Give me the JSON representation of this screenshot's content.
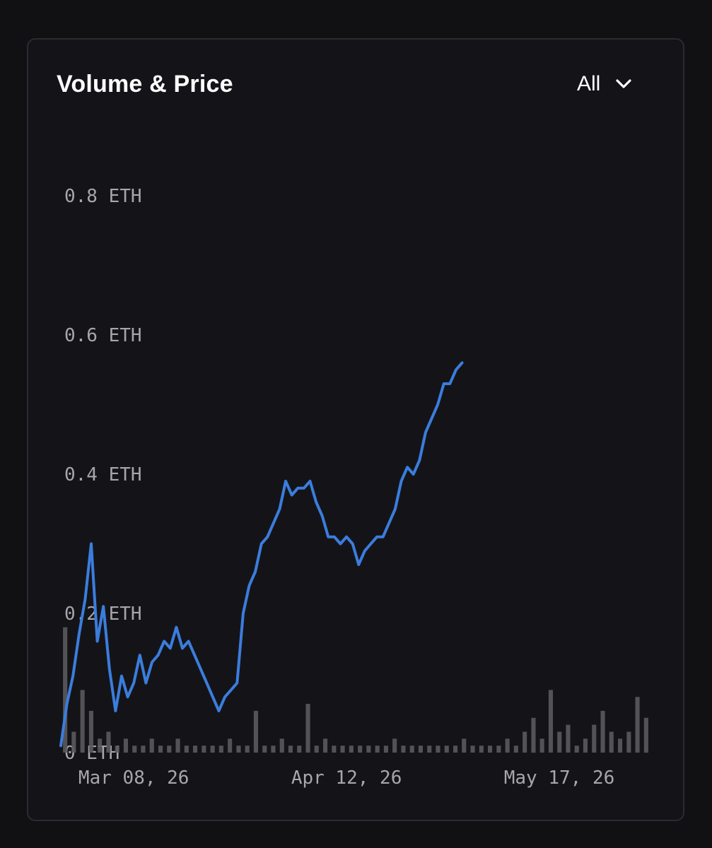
{
  "card": {
    "title": "Volume & Price",
    "range_selector": {
      "value": "All",
      "icon": "chevron-down-icon"
    }
  },
  "colors": {
    "background": "#111113",
    "card": "#141418",
    "price_line": "#3b7ddd",
    "volume_bars": "#5a5a5e",
    "tick_text": "#a7a7ab"
  },
  "chart_data": {
    "type": "line",
    "title": "",
    "xlabel": "",
    "ylabel": "",
    "ylim": [
      0,
      0.8
    ],
    "grid": false,
    "legend": "none",
    "y_ticks": [
      {
        "value": 0.8,
        "label": "0.8 ETH"
      },
      {
        "value": 0.6,
        "label": "0.6 ETH"
      },
      {
        "value": 0.4,
        "label": "0.4 ETH"
      },
      {
        "value": 0.2,
        "label": "0.2 ETH"
      },
      {
        "value": 0,
        "label": "0 ETH"
      }
    ],
    "x_ticks": [
      "Mar 08, 26",
      "Apr 12, 26",
      "May 17, 26"
    ],
    "x_tick_dates": [
      "2026-03-08",
      "2026-04-12",
      "2026-05-17"
    ],
    "xlim": [
      "2026-02-24",
      "2026-06-01"
    ],
    "series": [
      {
        "kind": "line",
        "points": [
          [
            "2026-02-24",
            0.01
          ],
          [
            "2026-02-25",
            0.07
          ],
          [
            "2026-02-26",
            0.11
          ],
          [
            "2026-02-27",
            0.17
          ],
          [
            "2026-02-28",
            0.22
          ],
          [
            "2026-03-01",
            0.3
          ],
          [
            "2026-03-02",
            0.16
          ],
          [
            "2026-03-03",
            0.21
          ],
          [
            "2026-03-04",
            0.12
          ],
          [
            "2026-03-05",
            0.06
          ],
          [
            "2026-03-06",
            0.11
          ],
          [
            "2026-03-07",
            0.08
          ],
          [
            "2026-03-08",
            0.1
          ],
          [
            "2026-03-09",
            0.14
          ],
          [
            "2026-03-10",
            0.1
          ],
          [
            "2026-03-11",
            0.13
          ],
          [
            "2026-03-12",
            0.14
          ],
          [
            "2026-03-13",
            0.16
          ],
          [
            "2026-03-14",
            0.15
          ],
          [
            "2026-03-15",
            0.18
          ],
          [
            "2026-03-16",
            0.15
          ],
          [
            "2026-03-17",
            0.16
          ],
          [
            "2026-03-18",
            0.14
          ],
          [
            "2026-03-19",
            0.12
          ],
          [
            "2026-03-20",
            0.1
          ],
          [
            "2026-03-21",
            0.08
          ],
          [
            "2026-03-22",
            0.06
          ],
          [
            "2026-03-23",
            0.08
          ],
          [
            "2026-03-24",
            0.09
          ],
          [
            "2026-03-25",
            0.1
          ],
          [
            "2026-03-26",
            0.2
          ],
          [
            "2026-03-27",
            0.24
          ],
          [
            "2026-03-28",
            0.26
          ],
          [
            "2026-03-29",
            0.3
          ],
          [
            "2026-03-30",
            0.31
          ],
          [
            "2026-03-31",
            0.33
          ],
          [
            "2026-04-01",
            0.35
          ],
          [
            "2026-04-02",
            0.39
          ],
          [
            "2026-04-03",
            0.37
          ],
          [
            "2026-04-04",
            0.38
          ],
          [
            "2026-04-05",
            0.38
          ],
          [
            "2026-04-06",
            0.39
          ],
          [
            "2026-04-07",
            0.36
          ],
          [
            "2026-04-08",
            0.34
          ],
          [
            "2026-04-09",
            0.31
          ],
          [
            "2026-04-10",
            0.31
          ],
          [
            "2026-04-11",
            0.3
          ],
          [
            "2026-04-12",
            0.31
          ],
          [
            "2026-04-13",
            0.3
          ],
          [
            "2026-04-14",
            0.27
          ],
          [
            "2026-04-15",
            0.29
          ],
          [
            "2026-04-16",
            0.3
          ],
          [
            "2026-04-17",
            0.31
          ],
          [
            "2026-04-18",
            0.31
          ],
          [
            "2026-04-19",
            0.33
          ],
          [
            "2026-04-20",
            0.35
          ],
          [
            "2026-04-21",
            0.39
          ],
          [
            "2026-04-22",
            0.41
          ],
          [
            "2026-04-23",
            0.4
          ],
          [
            "2026-04-24",
            0.42
          ],
          [
            "2026-04-25",
            0.46
          ],
          [
            "2026-04-26",
            0.48
          ],
          [
            "2026-04-27",
            0.5
          ],
          [
            "2026-04-28",
            0.53
          ],
          [
            "2026-04-29",
            0.53
          ],
          [
            "2026-04-30",
            0.55
          ],
          [
            "2026-05-01",
            0.56
          ]
        ]
      },
      {
        "kind": "bar",
        "values": [
          0.18,
          0.03,
          0.09,
          0.06,
          0.02,
          0.03,
          0.01,
          0.02,
          0.01,
          0.01,
          0.02,
          0.01,
          0.01,
          0.02,
          0.01,
          0.01,
          0.01,
          0.01,
          0.01,
          0.02,
          0.01,
          0.01,
          0.06,
          0.01,
          0.01,
          0.02,
          0.01,
          0.01,
          0.07,
          0.01,
          0.02,
          0.01,
          0.01,
          0.01,
          0.01,
          0.01,
          0.01,
          0.01,
          0.02,
          0.01,
          0.01,
          0.01,
          0.01,
          0.01,
          0.01,
          0.01,
          0.02,
          0.01,
          0.01,
          0.01,
          0.01,
          0.02,
          0.01,
          0.03,
          0.05,
          0.02,
          0.09,
          0.03,
          0.04,
          0.01,
          0.02,
          0.04,
          0.06,
          0.03,
          0.02,
          0.03,
          0.08,
          0.05
        ]
      }
    ]
  }
}
